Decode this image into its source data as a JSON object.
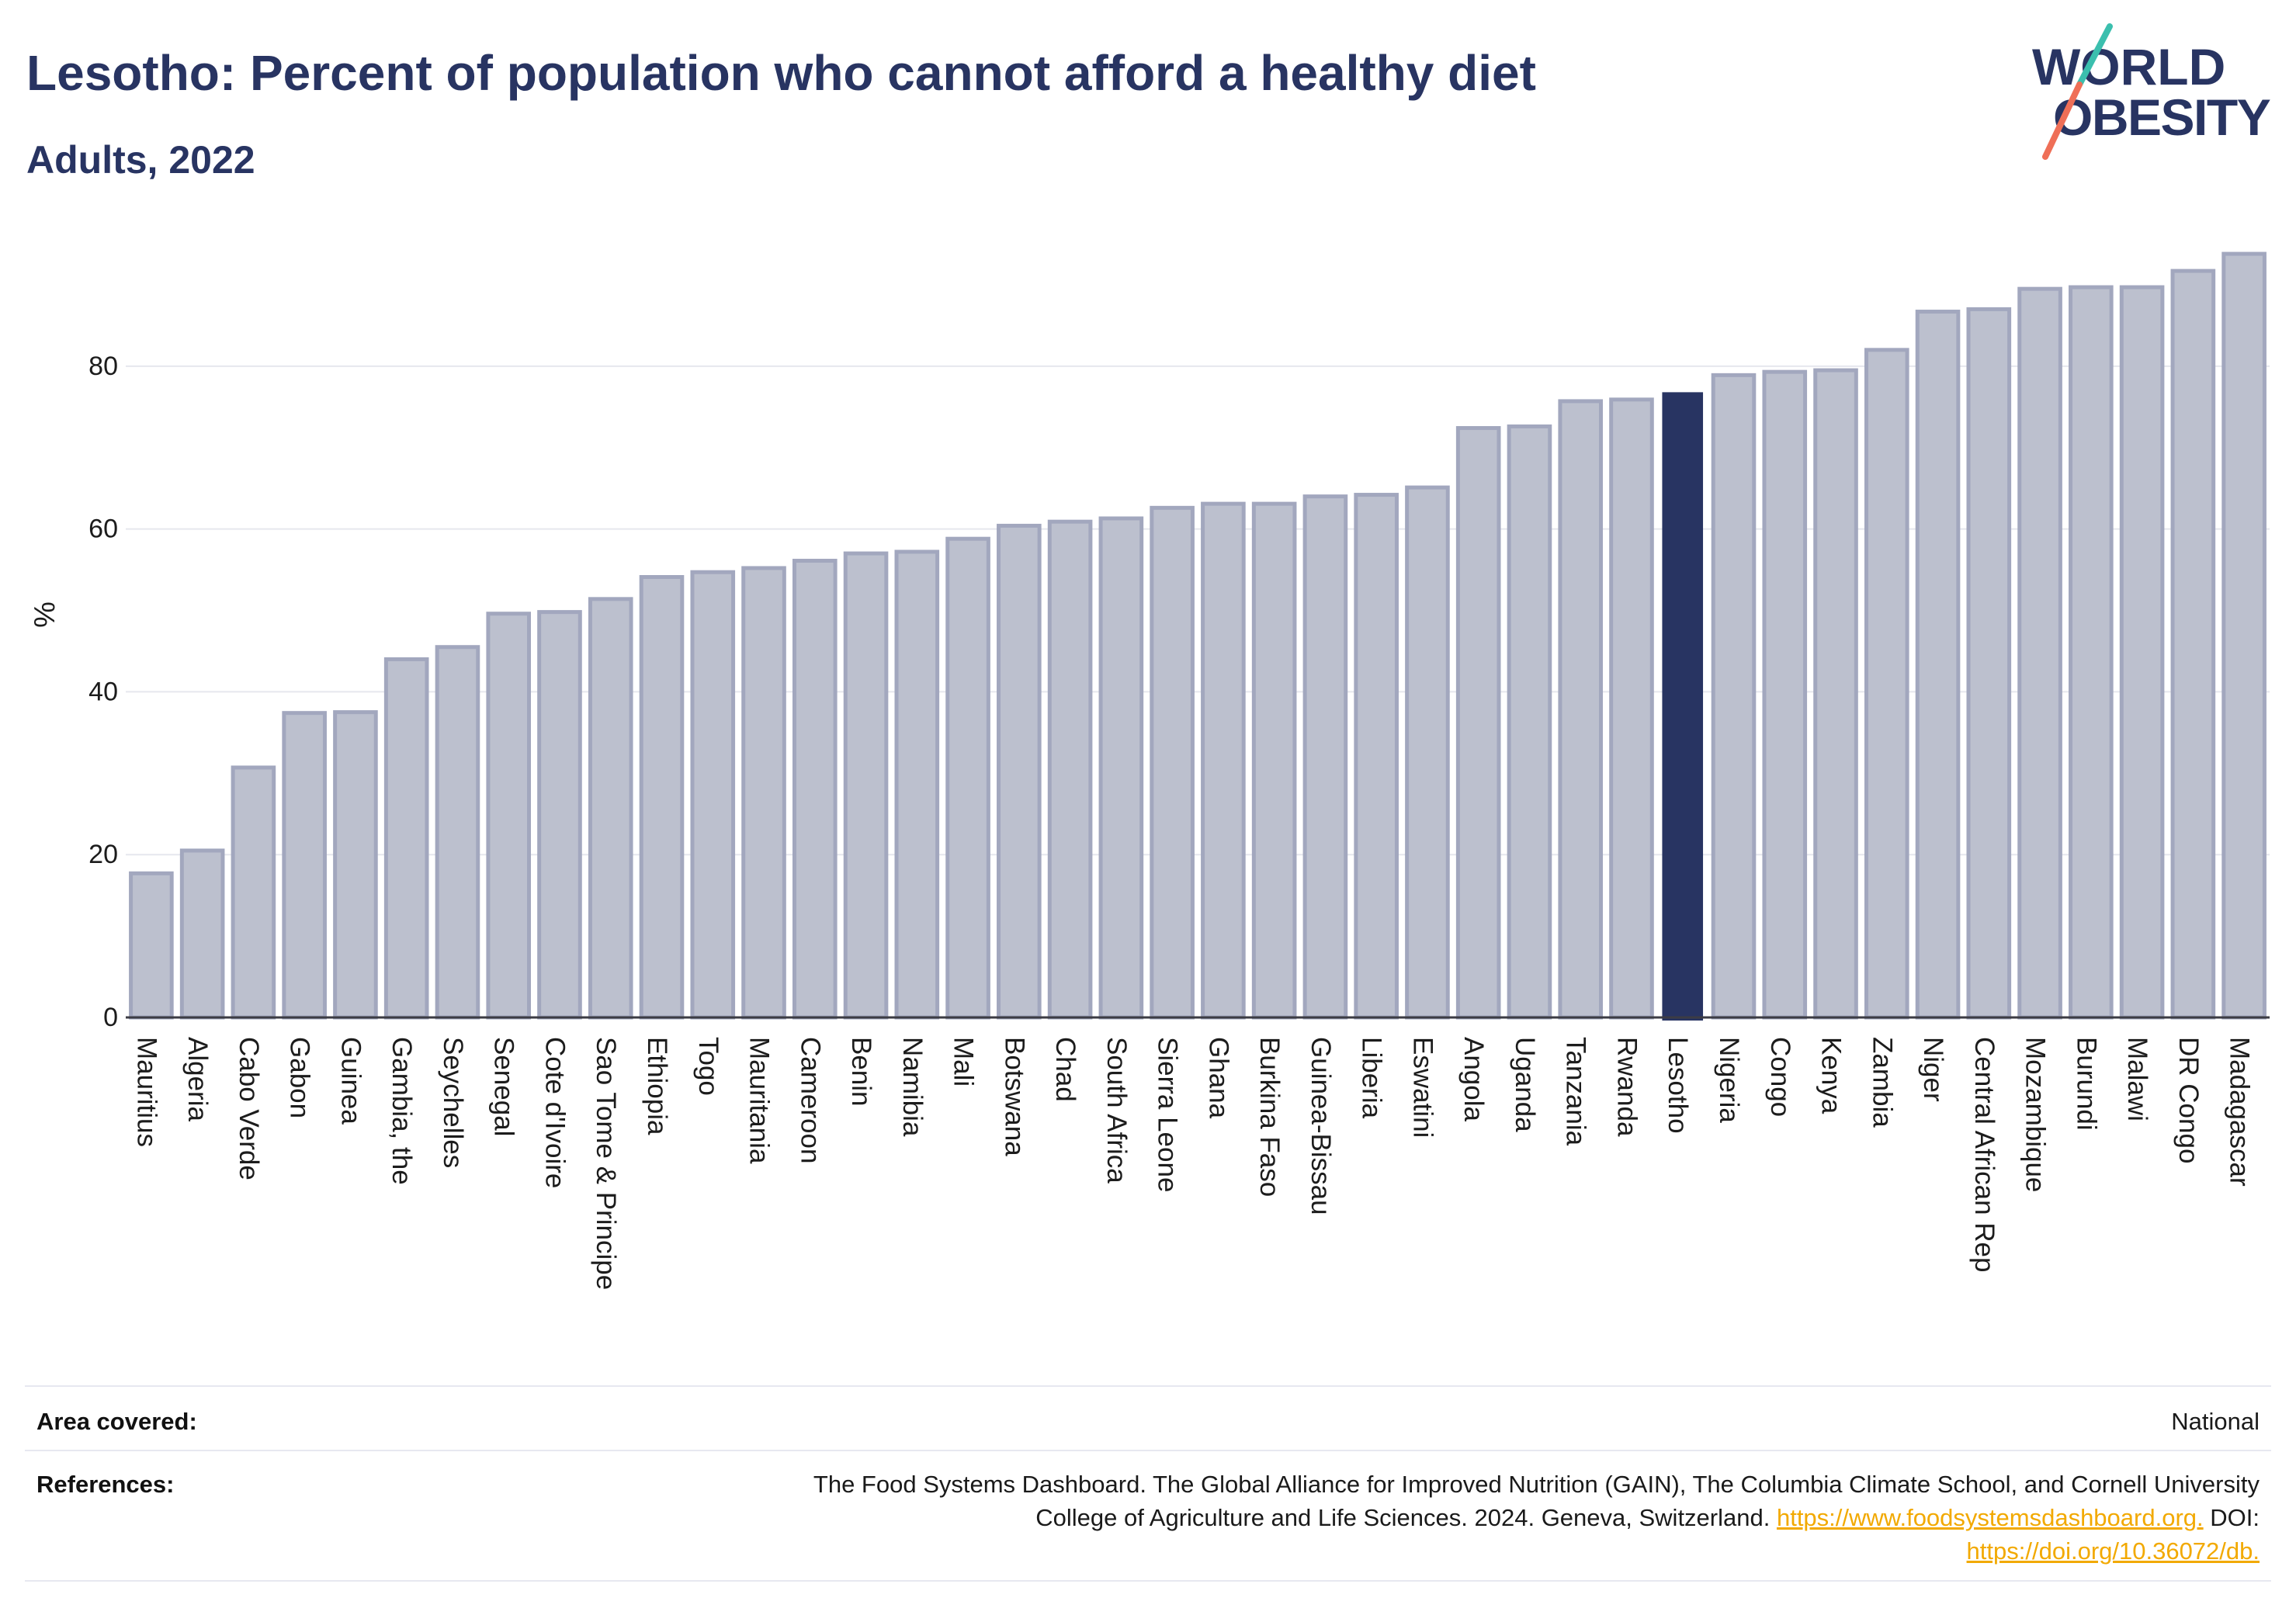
{
  "logo": {
    "line1": "WORLD",
    "line2": "OBESITY",
    "text_color": "#283462",
    "slash_top_color": "#3bbfae",
    "slash_bottom_color": "#ef6f57"
  },
  "chart_data": {
    "type": "bar",
    "title": "Lesotho: Percent of population who cannot afford a healthy diet",
    "subtitle": "Adults, 2022",
    "ylabel": "%",
    "categories": [
      "Mauritius",
      "Algeria",
      "Cabo Verde",
      "Gabon",
      "Guinea",
      "Gambia, the",
      "Seychelles",
      "Senegal",
      "Cote d'Ivoire",
      "Sao Tome & Principe",
      "Ethiopia",
      "Togo",
      "Mauritania",
      "Cameroon",
      "Benin",
      "Namibia",
      "Mali",
      "Botswana",
      "Chad",
      "South Africa",
      "Sierra Leone",
      "Ghana",
      "Burkina Faso",
      "Guinea-Bissau",
      "Liberia",
      "Eswatini",
      "Angola",
      "Uganda",
      "Tanzania",
      "Rwanda",
      "Lesotho",
      "Nigeria",
      "Congo",
      "Kenya",
      "Zambia",
      "Niger",
      "Central African Rep",
      "Mozambique",
      "Burundi",
      "Malawi",
      "DR Congo",
      "Madagascar"
    ],
    "values": [
      17.7,
      20.5,
      30.7,
      37.4,
      37.5,
      44.0,
      45.5,
      49.6,
      49.8,
      51.4,
      54.1,
      54.7,
      55.2,
      56.1,
      57.0,
      57.2,
      58.8,
      60.4,
      60.9,
      61.3,
      62.6,
      63.1,
      63.1,
      64.0,
      64.2,
      65.1,
      72.4,
      72.6,
      75.7,
      75.9,
      76.8,
      78.9,
      79.3,
      79.5,
      82.0,
      86.7,
      87.0,
      89.5,
      89.7,
      89.7,
      91.7,
      93.8
    ],
    "highlight": "Lesotho",
    "ylim": [
      0,
      98
    ],
    "yticks": [
      0,
      20,
      40,
      60,
      80
    ],
    "grid": true,
    "colors": {
      "bar": "#bcc0ce",
      "bar_outline": "#a2a7be",
      "highlight": "#283462",
      "grid": "#e6e7ee",
      "axis": "#3c3c44"
    }
  },
  "info_table": {
    "area_label": "Area covered:",
    "area_value": "National",
    "references_label": "References:",
    "references_line1": "The Food Systems Dashboard. The Global Alliance for Improved Nutrition (GAIN), The Columbia Climate School, and Cornell University",
    "references_line2": "College of Agriculture and Life Sciences. 2024. Geneva, Switzerland.",
    "references_url": "https://www.foodsystemsdashboard.org.",
    "references_doi_label": "DOI:",
    "references_doi_url": "https://doi.org/10.36072/db.",
    "link_color": "#f2a900"
  }
}
